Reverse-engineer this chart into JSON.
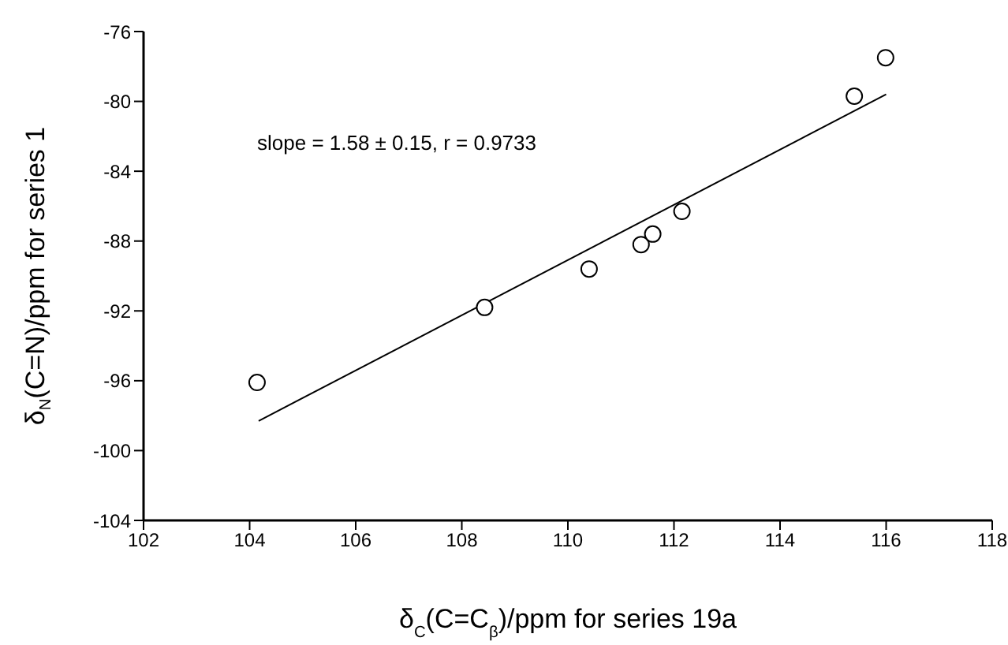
{
  "chart_data": {
    "type": "scatter",
    "xlabel": "δ$_{C}$(C=C$_{β}$)/ppm for series 19a",
    "ylabel": "δ$_{N}$(C=N)/ppm for series 1",
    "annotations": [
      "slope = 1.58 ± 0.15, r = 0.9733"
    ],
    "xlim": [
      102,
      118
    ],
    "xticks": [
      102,
      104,
      106,
      108,
      110,
      112,
      114,
      116,
      118
    ],
    "ylim": [
      -104,
      -76
    ],
    "yticks": [
      -104,
      -100,
      -96,
      -92,
      -88,
      -84,
      -80,
      -76
    ],
    "grid": false,
    "legend": false,
    "series": [
      {
        "type": "scatter",
        "color": "#000000",
        "marker": "circle",
        "x": [
          104.14,
          108.43,
          110.4,
          111.38,
          111.6,
          112.15,
          115.4,
          115.99
        ],
        "values": [
          -96.1,
          -91.8,
          -89.6,
          -88.2,
          -87.6,
          -86.3,
          -79.7,
          -77.5
        ]
      },
      {
        "type": "line",
        "color": "#000000",
        "x": [
          104.17,
          116.0
        ],
        "values": [
          -98.3,
          -79.6
        ]
      }
    ]
  }
}
